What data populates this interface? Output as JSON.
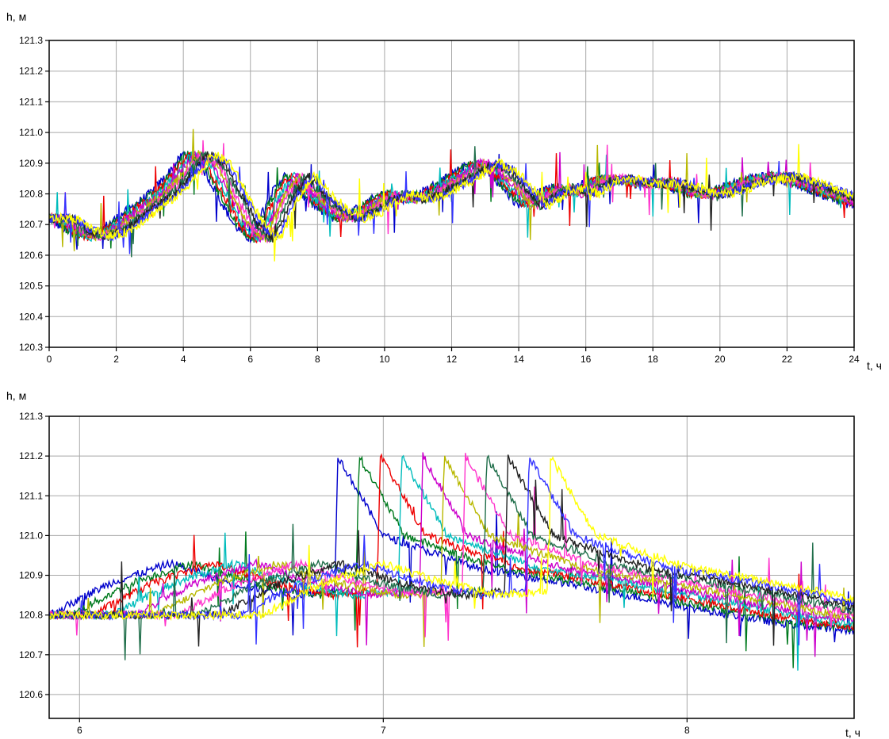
{
  "chart_data": [
    {
      "type": "line",
      "ylabel": "h, м",
      "xlabel": "t, ч",
      "xlim": [
        0,
        24
      ],
      "ylim": [
        120.3,
        121.3
      ],
      "xticks": [
        "0",
        "2",
        "4",
        "6",
        "8",
        "10",
        "12",
        "14",
        "16",
        "18",
        "20",
        "22",
        "24"
      ],
      "yticks": [
        "120.3",
        "120.4",
        "120.5",
        "120.6",
        "120.7",
        "120.8",
        "120.9",
        "121.0",
        "121.1",
        "121.2",
        "121.3"
      ],
      "grid": true,
      "series_colors": [
        "#0000cc",
        "#007a1e",
        "#ee0000",
        "#00bcbc",
        "#cc00cc",
        "#b8b800",
        "#ff33cc",
        "#1f6e4a",
        "#222222",
        "#3333ff",
        "#ffff00"
      ],
      "series": [
        {
          "x": [
            0,
            0.5,
            1,
            1.5,
            2,
            2.5,
            3,
            3.5,
            4,
            4.5,
            5,
            5.5,
            6,
            6.5,
            7,
            7.5,
            8,
            8.5,
            9,
            9.5,
            10,
            10.5,
            11,
            11.5,
            12,
            12.5,
            13,
            13.5,
            14,
            14.5,
            15,
            15.5,
            16,
            16.5,
            17,
            17.5,
            18,
            18.5,
            19,
            19.5,
            20,
            20.5,
            21,
            21.5,
            22,
            22.5,
            23,
            23.5,
            24
          ],
          "y": [
            120.72,
            120.68,
            120.66,
            120.68,
            120.72,
            120.76,
            120.8,
            120.86,
            120.93,
            120.9,
            120.8,
            120.7,
            120.65,
            120.78,
            120.86,
            120.8,
            120.75,
            120.72,
            120.74,
            120.78,
            120.8,
            120.78,
            120.8,
            120.83,
            120.86,
            120.9,
            120.88,
            120.82,
            120.76,
            120.8,
            120.82,
            120.8,
            120.84,
            120.85,
            120.84,
            120.83,
            120.84,
            120.82,
            120.8,
            120.8,
            120.82,
            120.84,
            120.85,
            120.86,
            120.84,
            120.82,
            120.8,
            120.78,
            120.76
          ]
        }
      ]
    },
    {
      "type": "line",
      "ylabel": "h, м",
      "xlabel": "t, ч",
      "xlim": [
        5.9,
        8.55
      ],
      "ylim": [
        120.54,
        121.3
      ],
      "xticks": [
        "6",
        "7",
        "8"
      ],
      "yticks": [
        "120.6",
        "120.7",
        "120.8",
        "120.9",
        "121.0",
        "121.1",
        "121.2",
        "121.3"
      ],
      "grid": true,
      "series_colors": [
        "#0000cc",
        "#007a1e",
        "#ee0000",
        "#00bcbc",
        "#cc00cc",
        "#b8b800",
        "#ff33cc",
        "#1f6e4a",
        "#222222",
        "#3333ff",
        "#ffff00"
      ],
      "series": [
        {
          "x": [
            5.9,
            6.1,
            6.3,
            6.5,
            6.7,
            6.84,
            6.85,
            7.0,
            7.3,
            7.6,
            8.0,
            8.3,
            8.55
          ],
          "y": [
            120.8,
            120.88,
            120.93,
            120.88,
            120.85,
            120.86,
            121.2,
            121.0,
            120.92,
            120.88,
            120.82,
            120.78,
            120.76
          ]
        }
      ]
    }
  ]
}
